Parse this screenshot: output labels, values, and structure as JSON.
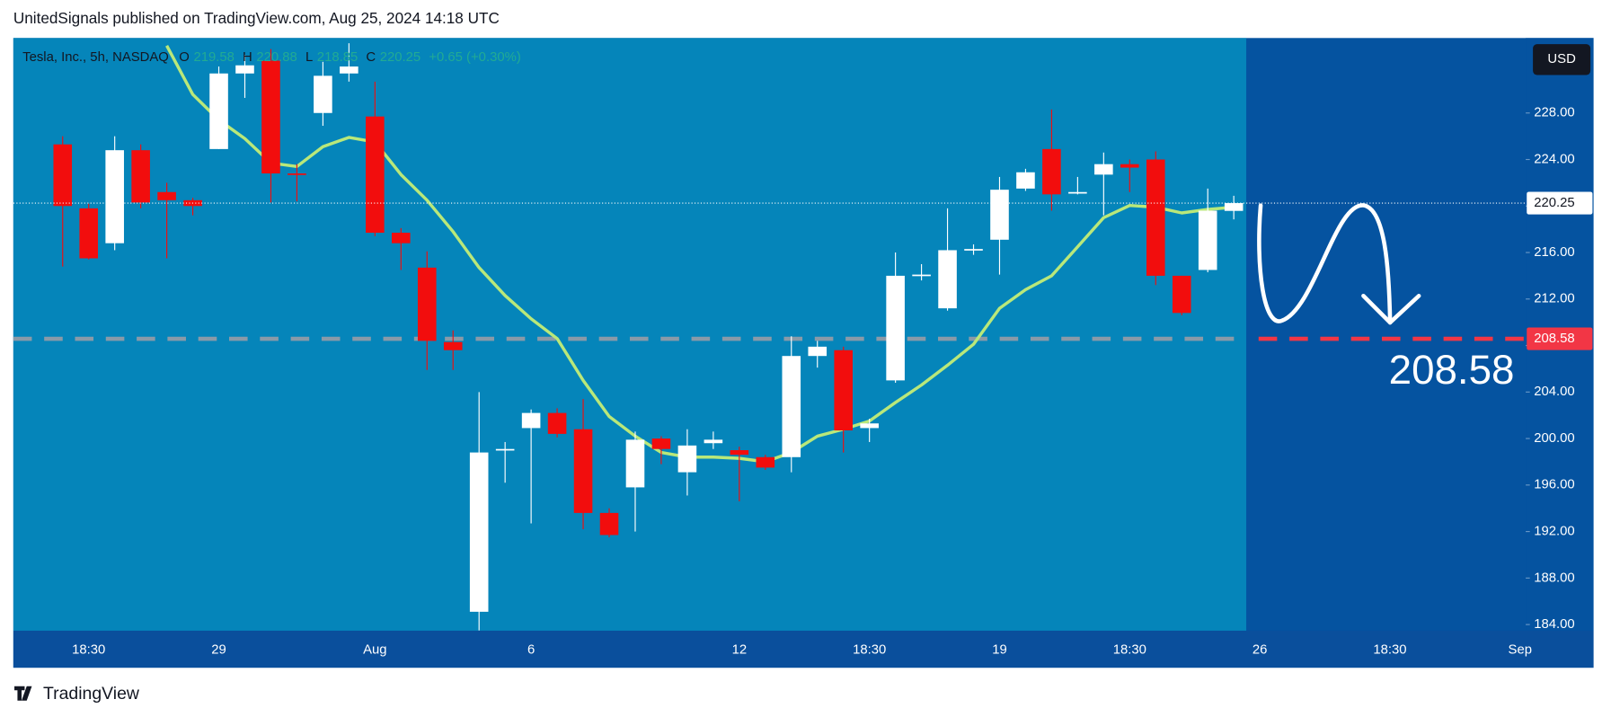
{
  "header": {
    "published": "UnitedSignals published on TradingView.com, Aug 25, 2024 14:18 UTC"
  },
  "footer": {
    "brand": "TradingView"
  },
  "chart_data": {
    "type": "candlestick",
    "symbol": "Tesla, Inc., 5h, NASDAQ",
    "ohlc_letters": [
      "O",
      "H",
      "L",
      "C"
    ],
    "change": "+0.65 (+0.30%)",
    "currency": "USD",
    "up_color": "#ffffff",
    "down_color": "#f20d0d",
    "ma_color": "#b9e87a",
    "level": 208.58,
    "level_color": "#f23645",
    "categories": [
      null,
      "18:30",
      null,
      null,
      null,
      null,
      "29",
      null,
      null,
      null,
      null,
      null,
      "Aug",
      null,
      null,
      null,
      null,
      null,
      "6",
      null,
      null,
      null,
      null,
      null,
      null,
      null,
      "12",
      null,
      null,
      null,
      null,
      "18:30",
      null,
      null,
      null,
      null,
      "19",
      null,
      null,
      null,
      null,
      "18:30",
      null,
      null,
      null,
      null,
      "26",
      null,
      null,
      null,
      null,
      "18:30",
      null,
      null,
      null,
      null,
      "Sep"
    ],
    "open": [
      225.3,
      219.8,
      216.8,
      224.8,
      221.2,
      220.5,
      224.9,
      231.4,
      232.5,
      222.8,
      228,
      231.4,
      227.7,
      217.7,
      214.7,
      208.3,
      185.1,
      199,
      200.9,
      202.2,
      200.8,
      193.6,
      195.8,
      200,
      197.1,
      199.6,
      199,
      198.4,
      198.4,
      207.1,
      207.6,
      200.9,
      205,
      214,
      211.2,
      216.2,
      217.1,
      221.5,
      224.9,
      221.1,
      222.7,
      223.6,
      224,
      214,
      214.5,
      219.58,
      null,
      null,
      null,
      null,
      null,
      null,
      null,
      null,
      null,
      null,
      null
    ],
    "high": [
      226,
      220.2,
      226,
      225.3,
      222,
      220.7,
      232,
      233,
      233.5,
      223.6,
      232.4,
      234,
      230.7,
      218.1,
      216.1,
      209.3,
      204,
      199.7,
      202.5,
      202.6,
      203.4,
      194,
      200.6,
      200.2,
      200.8,
      200.6,
      199.3,
      198.6,
      208.8,
      208.4,
      207.9,
      201.7,
      216,
      215,
      219.8,
      216.7,
      222.5,
      223.2,
      228.3,
      222.5,
      224.6,
      224,
      224.7,
      214,
      221.5,
      220.88,
      null,
      null,
      null,
      null,
      null,
      null,
      null,
      null,
      null,
      null,
      null
    ],
    "low": [
      214.8,
      215.4,
      216.2,
      219.8,
      215.5,
      219.2,
      224.9,
      229.3,
      220.3,
      220.4,
      226.9,
      230.7,
      217.4,
      214.5,
      205.9,
      205.9,
      183.5,
      196.2,
      192.7,
      200.1,
      192.2,
      191.5,
      192,
      197.8,
      195.1,
      199.1,
      194.6,
      197.3,
      197.1,
      206.1,
      198.8,
      199.7,
      204.8,
      213.6,
      211,
      215.8,
      214.1,
      221.3,
      219.6,
      221,
      219.2,
      221.2,
      213.2,
      210.6,
      214.3,
      218.85,
      null,
      null,
      null,
      null,
      null,
      null,
      null,
      null,
      null,
      null,
      null
    ],
    "close": [
      220,
      215.5,
      224.8,
      220.3,
      220.5,
      220,
      231.4,
      232.1,
      222.8,
      222.7,
      231.2,
      232,
      217.7,
      216.8,
      208.4,
      207.6,
      198.8,
      199.1,
      202.2,
      200.4,
      193.6,
      191.7,
      199.9,
      199.1,
      199.4,
      199.9,
      198.6,
      197.5,
      207.1,
      207.9,
      200.7,
      201.3,
      214,
      214.1,
      216.2,
      216.3,
      221.4,
      222.9,
      221,
      221.2,
      223.6,
      223.3,
      214,
      210.8,
      219.6,
      220.25,
      null,
      null,
      null,
      null,
      null,
      null,
      null,
      null,
      null,
      null,
      null
    ],
    "ma": [
      null,
      null,
      null,
      null,
      233.8,
      229.6,
      227.4,
      225.8,
      223.7,
      223.4,
      225.1,
      225.9,
      225.5,
      222.7,
      220.5,
      217.8,
      214.7,
      212.3,
      210.3,
      208.6,
      205,
      201.9,
      200.2,
      198.8,
      198.4,
      198.4,
      198.3,
      198,
      198.8,
      200.2,
      200.8,
      201.5,
      203.1,
      204.6,
      206.3,
      208.1,
      211.2,
      212.8,
      214,
      216.5,
      219,
      220.05,
      219.9,
      219.4,
      219.7,
      219.9,
      null,
      null,
      null,
      null,
      null,
      null,
      null,
      null,
      null,
      null,
      null
    ],
    "ylim": [
      183.47,
      234.45
    ],
    "yticks": [
      {
        "value": 184,
        "label": "184.00"
      },
      {
        "value": 188,
        "label": "188.00"
      },
      {
        "value": 192,
        "label": "192.00"
      },
      {
        "value": 196,
        "label": "196.00"
      },
      {
        "value": 200,
        "label": "200.00"
      },
      {
        "value": 204,
        "label": "204.00"
      },
      {
        "value": 208,
        "label": "208.00"
      },
      {
        "value": 212,
        "label": "212.00"
      },
      {
        "value": 216,
        "label": "216.00"
      },
      {
        "value": 220,
        "label": "220.00"
      },
      {
        "value": 224,
        "label": "224.00"
      },
      {
        "value": 228,
        "label": "228.00"
      }
    ]
  }
}
